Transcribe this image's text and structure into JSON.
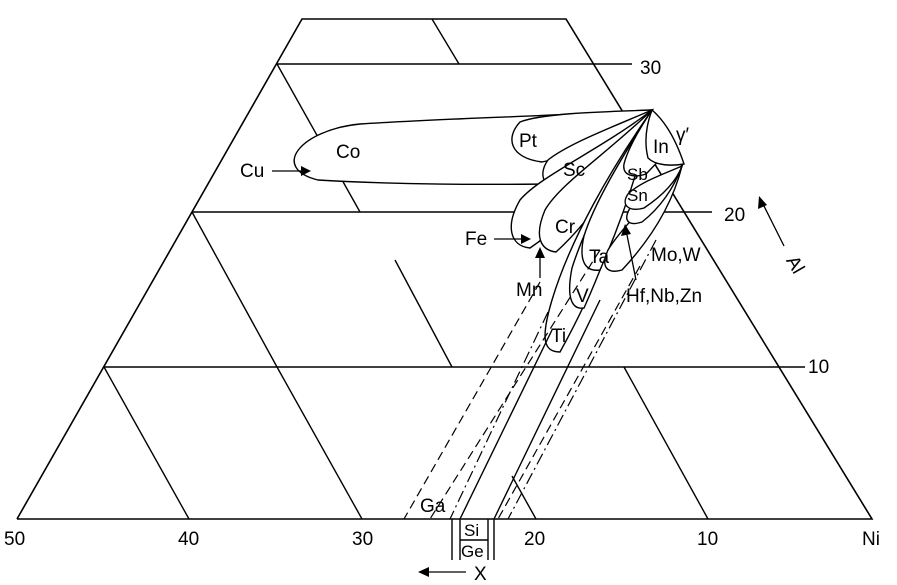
{
  "axis_ticks": {
    "bottom": [
      "50",
      "40",
      "30",
      "20",
      "10",
      "Ni"
    ],
    "right": [
      "30",
      "20",
      "10"
    ]
  },
  "axis_labels": {
    "al": "Al",
    "x": "X"
  },
  "phase_label": "γ′",
  "elements": {
    "co": "Co",
    "pt": "Pt",
    "cu": "Cu",
    "sc": "Sc",
    "in": "In",
    "sb": "Sb",
    "sn": "Sn",
    "fe": "Fe",
    "cr": "Cr",
    "mn": "Mn",
    "ta": "Ta",
    "mo_w": "Mo,W",
    "v": "V",
    "hf_nb_zn": "Hf,Nb,Zn",
    "ti": "Ti",
    "ga": "Ga",
    "si": "Si",
    "ge": "Ge"
  }
}
